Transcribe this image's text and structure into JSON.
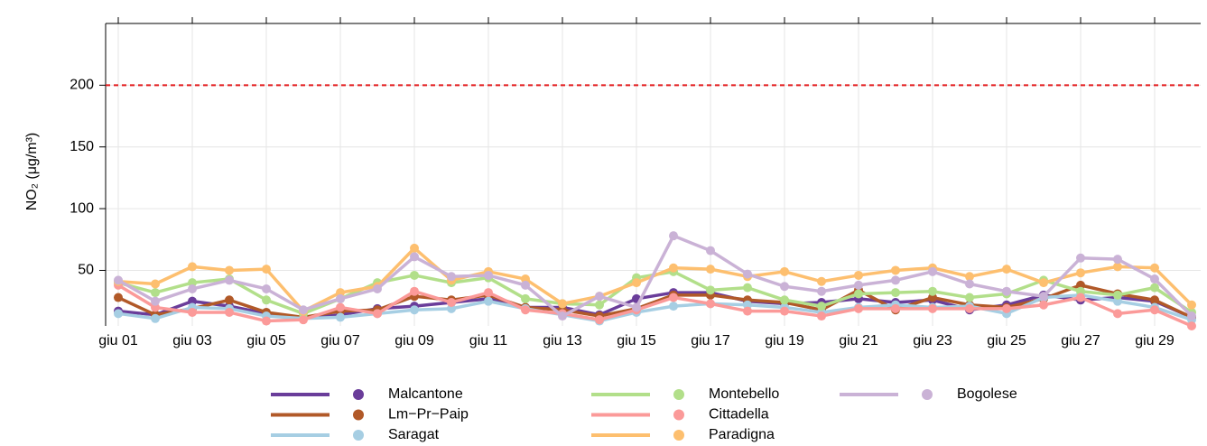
{
  "chart_data": {
    "type": "line",
    "ylabel": "NO₂ (μg/m³)",
    "categories": [
      "giu 01",
      null,
      "giu 03",
      null,
      "giu 05",
      null,
      "giu 07",
      null,
      "giu 09",
      null,
      "giu 11",
      null,
      "giu 13",
      null,
      "giu 15",
      null,
      "giu 17",
      null,
      "giu 19",
      null,
      "giu 21",
      null,
      "giu 23",
      null,
      "giu 25",
      null,
      "giu 27",
      null,
      "giu 29",
      null
    ],
    "ylim": [
      5,
      250
    ],
    "yticks": [
      50,
      100,
      150,
      200
    ],
    "grid": true,
    "threshold": 200,
    "threshold_color": "#e31a1c",
    "series": [
      {
        "name": "Malcantone",
        "color": "#6a3d9a",
        "values": [
          17,
          14,
          25,
          21,
          15,
          11,
          14,
          19,
          21,
          24,
          27,
          20,
          20,
          14,
          27,
          32,
          32,
          25,
          23,
          24,
          27,
          24,
          26,
          18,
          22,
          30,
          26,
          28,
          25,
          12
        ]
      },
      {
        "name": "Lm−Pr−Paip",
        "color": "#b15928",
        "values": [
          28,
          14,
          19,
          26,
          16,
          12,
          17,
          18,
          29,
          26,
          30,
          20,
          18,
          13,
          19,
          30,
          30,
          26,
          24,
          18,
          34,
          18,
          28,
          22,
          20,
          27,
          38,
          31,
          26,
          12
        ]
      },
      {
        "name": "Saragat",
        "color": "#a6cee3",
        "values": [
          15,
          11,
          20,
          19,
          13,
          11,
          12,
          15,
          18,
          19,
          25,
          19,
          14,
          9,
          16,
          21,
          23,
          22,
          20,
          16,
          20,
          22,
          20,
          21,
          15,
          28,
          30,
          25,
          20,
          10
        ]
      },
      {
        "name": "Montebello",
        "color": "#b2df8a",
        "values": [
          40,
          32,
          40,
          43,
          26,
          15,
          27,
          40,
          46,
          40,
          44,
          27,
          23,
          22,
          44,
          49,
          34,
          36,
          26,
          21,
          31,
          32,
          33,
          28,
          31,
          42,
          33,
          30,
          36,
          16
        ]
      },
      {
        "name": "Cittadella",
        "color": "#fb9a99",
        "values": [
          38,
          20,
          16,
          16,
          9,
          10,
          20,
          15,
          33,
          24,
          32,
          18,
          15,
          10,
          18,
          28,
          23,
          17,
          17,
          13,
          19,
          19,
          19,
          19,
          19,
          22,
          28,
          15,
          18,
          5
        ]
      },
      {
        "name": "Paradigna",
        "color": "#fdbf6f",
        "values": [
          41,
          39,
          53,
          50,
          51,
          17,
          32,
          37,
          68,
          42,
          49,
          43,
          23,
          29,
          40,
          52,
          51,
          45,
          49,
          41,
          46,
          50,
          52,
          45,
          51,
          40,
          48,
          53,
          52,
          22
        ]
      },
      {
        "name": "Bogolese",
        "color": "#cab2d6",
        "values": [
          42,
          25,
          35,
          42,
          35,
          18,
          27,
          35,
          61,
          45,
          46,
          38,
          13,
          29,
          20,
          78,
          66,
          47,
          37,
          33,
          38,
          42,
          49,
          39,
          33,
          29,
          60,
          59,
          43,
          13
        ]
      }
    ]
  }
}
